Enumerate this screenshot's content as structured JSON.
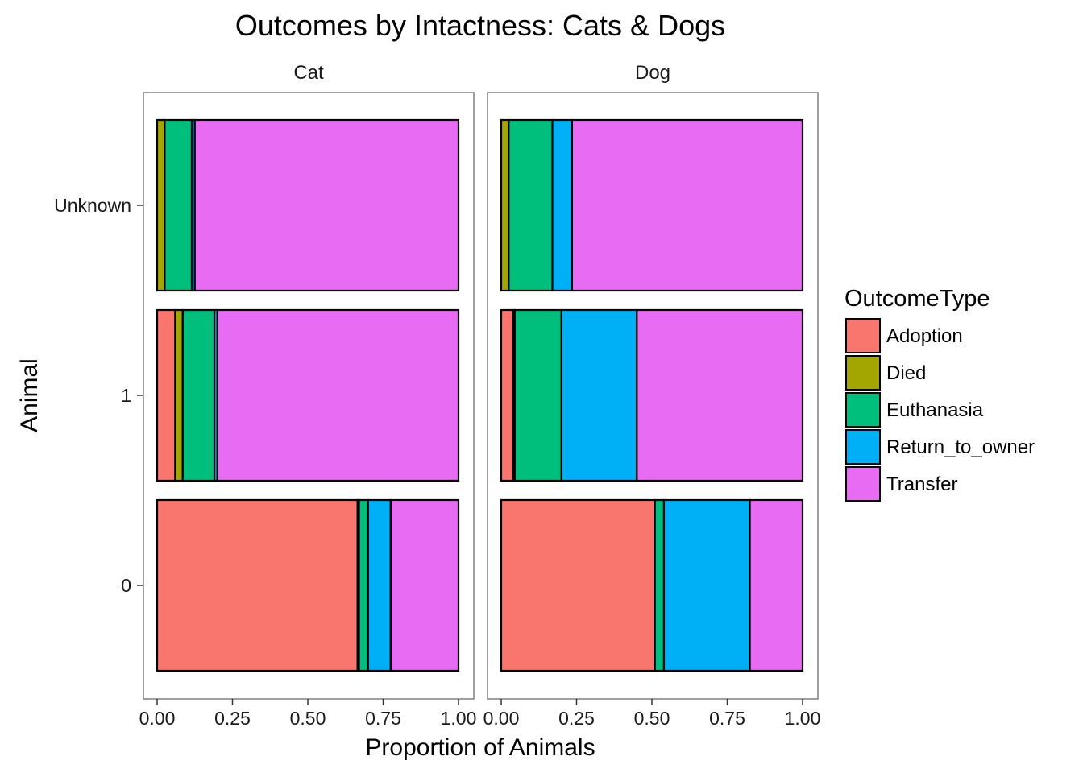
{
  "chart_data": {
    "type": "bar",
    "orientation": "horizontal",
    "stacked": true,
    "title": "Outcomes by Intactness: Cats & Dogs",
    "xlabel": "Proportion of Animals",
    "ylabel": "Animal",
    "xlim": [
      0,
      1
    ],
    "x_ticks": [
      "0.00",
      "0.25",
      "0.50",
      "0.75",
      "1.00"
    ],
    "categories": [
      "Unknown",
      "1",
      "0"
    ],
    "grid": false,
    "legend": {
      "title": "OutcomeType",
      "position": "right",
      "items": [
        {
          "name": "Adoption",
          "color": "#F8766D"
        },
        {
          "name": "Died",
          "color": "#A3A500"
        },
        {
          "name": "Euthanasia",
          "color": "#00BF7D"
        },
        {
          "name": "Return_to_owner",
          "color": "#00B0F6"
        },
        {
          "name": "Transfer",
          "color": "#E76BF3"
        }
      ]
    },
    "facets": [
      {
        "label": "Cat",
        "series": [
          {
            "name": "Adoption",
            "values": [
              0.0,
              0.06,
              0.665
            ]
          },
          {
            "name": "Died",
            "values": [
              0.025,
              0.025,
              0.005
            ]
          },
          {
            "name": "Euthanasia",
            "values": [
              0.09,
              0.105,
              0.03
            ]
          },
          {
            "name": "Return_to_owner",
            "values": [
              0.01,
              0.01,
              0.075
            ]
          },
          {
            "name": "Transfer",
            "values": [
              0.875,
              0.8,
              0.225
            ]
          }
        ]
      },
      {
        "label": "Dog",
        "series": [
          {
            "name": "Adoption",
            "values": [
              0.0,
              0.04,
              0.51
            ]
          },
          {
            "name": "Died",
            "values": [
              0.025,
              0.005,
              0.0
            ]
          },
          {
            "name": "Euthanasia",
            "values": [
              0.145,
              0.155,
              0.03
            ]
          },
          {
            "name": "Return_to_owner",
            "values": [
              0.065,
              0.25,
              0.285
            ]
          },
          {
            "name": "Transfer",
            "values": [
              0.765,
              0.55,
              0.175
            ]
          }
        ]
      }
    ]
  }
}
